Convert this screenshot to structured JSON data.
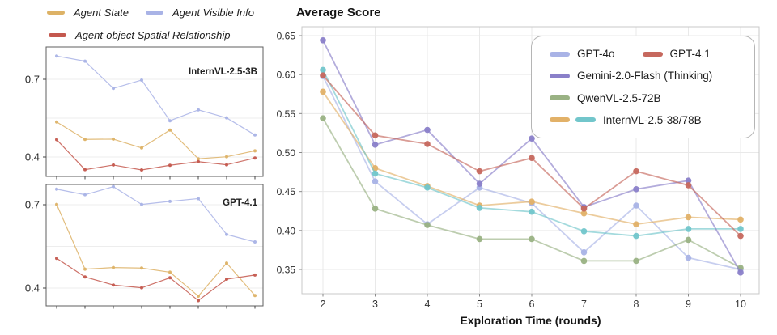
{
  "mini_legend": {
    "items": [
      {
        "label": "Agent State",
        "color": "#ddb266"
      },
      {
        "label": "Agent Visible Info",
        "color": "#a9b3e6"
      },
      {
        "label": "Agent-object Spatial Relationship",
        "color": "#c4584e"
      }
    ]
  },
  "main_chart": {
    "title": "Average Score",
    "xlabel": "Exploration Time (rounds)",
    "legend_rows": [
      [
        {
          "label": "GPT-4o",
          "colors": [
            "#a9b3e6"
          ]
        },
        {
          "label": "GPT-4.1",
          "colors": [
            "#c6685e"
          ]
        }
      ],
      [
        {
          "label": "Gemini-2.0-Flash (Thinking)",
          "colors": [
            "#8a80c9"
          ]
        }
      ],
      [
        {
          "label": "QwenVL-2.5-72B",
          "colors": [
            "#9ab284"
          ]
        }
      ],
      [
        {
          "label": "InternVL-2.5-38/78B",
          "colors": [
            "#e2b168",
            "#72c6cb"
          ]
        }
      ]
    ]
  },
  "chart_data": [
    {
      "id": "internvl-2-5-3b-mini",
      "type": "line",
      "title": "InternVL-2.5-3B",
      "x": [
        1,
        2,
        3,
        4,
        5,
        6,
        7,
        8
      ],
      "x_labels_visible": false,
      "ylim": [
        0.325,
        0.825
      ],
      "y_ticks": [
        0.7,
        0.4
      ],
      "grid_y": [
        0.7,
        0.55,
        0.4
      ],
      "legend_position": "none",
      "series": [
        {
          "name": "Agent Visible Info",
          "color": "#a9b3e6",
          "values": [
            0.79,
            0.77,
            0.665,
            0.697,
            0.54,
            0.582,
            0.551,
            0.485
          ]
        },
        {
          "name": "Agent State",
          "color": "#ddb266",
          "values": [
            0.535,
            0.468,
            0.469,
            0.435,
            0.504,
            0.393,
            0.401,
            0.424
          ]
        },
        {
          "name": "Agent-object Spatial Relationship",
          "color": "#c4584e",
          "values": [
            0.467,
            0.351,
            0.369,
            0.35,
            0.368,
            0.382,
            0.37,
            0.396
          ]
        }
      ]
    },
    {
      "id": "gpt-4-1-mini",
      "type": "line",
      "title": "GPT-4.1",
      "x": [
        1,
        2,
        3,
        4,
        5,
        6,
        7,
        8
      ],
      "x_labels_visible": false,
      "ylim": [
        0.336,
        0.773
      ],
      "y_ticks": [
        0.7,
        0.4
      ],
      "grid_y": [
        0.7,
        0.55,
        0.4
      ],
      "legend_position": "none",
      "series": [
        {
          "name": "Agent Visible Info",
          "color": "#a9b3e6",
          "values": [
            0.756,
            0.736,
            0.765,
            0.701,
            0.712,
            0.722,
            0.593,
            0.566
          ]
        },
        {
          "name": "Agent State",
          "color": "#ddb266",
          "values": [
            0.701,
            0.468,
            0.474,
            0.472,
            0.457,
            0.371,
            0.49,
            0.373
          ]
        },
        {
          "name": "Agent-object Spatial Relationship",
          "color": "#c4584e",
          "values": [
            0.507,
            0.44,
            0.411,
            0.401,
            0.437,
            0.355,
            0.432,
            0.447
          ]
        }
      ]
    },
    {
      "id": "average-score-main",
      "type": "line",
      "title": "Average Score",
      "xlabel": "Exploration Time (rounds)",
      "x": [
        2,
        3,
        4,
        5,
        6,
        7,
        8,
        9,
        10
      ],
      "x_labels_visible": true,
      "ylim": [
        0.32,
        0.66
      ],
      "y_ticks": [
        0.65,
        0.6,
        0.55,
        0.5,
        0.45,
        0.4,
        0.35
      ],
      "grid_y": [
        0.65,
        0.6,
        0.55,
        0.5,
        0.45,
        0.4,
        0.35
      ],
      "grid_x": true,
      "legend_position": "upper-right",
      "series": [
        {
          "name": "GPT-4o",
          "color": "#a9b3e6",
          "values": [
            0.598,
            0.463,
            0.408,
            0.455,
            0.435,
            0.372,
            0.432,
            0.365,
            0.35
          ]
        },
        {
          "name": "InternVL-2.5-38/78B (orange)",
          "color": "#e2b168",
          "values": [
            0.578,
            0.48,
            0.457,
            0.432,
            0.437,
            0.422,
            0.408,
            0.417,
            0.414
          ]
        },
        {
          "name": "QwenVL-2.5-72B",
          "color": "#9ab284",
          "values": [
            0.544,
            0.428,
            0.407,
            0.389,
            0.389,
            0.361,
            0.361,
            0.388,
            0.352
          ]
        },
        {
          "name": "InternVL-2.5-38/78B (teal)",
          "color": "#72c6cb",
          "values": [
            0.606,
            0.473,
            0.455,
            0.429,
            0.424,
            0.399,
            0.393,
            0.402,
            0.402
          ]
        },
        {
          "name": "Gemini-2.0-Flash (Thinking)",
          "color": "#8a80c9",
          "values": [
            0.644,
            0.51,
            0.529,
            0.46,
            0.518,
            0.43,
            0.453,
            0.464,
            0.346
          ]
        },
        {
          "name": "GPT-4.1",
          "color": "#c6685e",
          "values": [
            0.599,
            0.522,
            0.511,
            0.476,
            0.493,
            0.428,
            0.476,
            0.458,
            0.393
          ]
        }
      ]
    }
  ]
}
